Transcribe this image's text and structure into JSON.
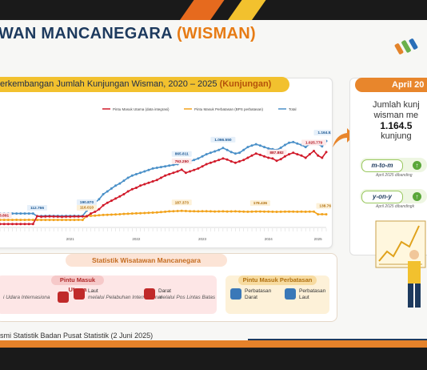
{
  "title": {
    "part1": "WAN MANCANEGARA",
    "part2": "(WISMAN)"
  },
  "chart_header": {
    "text": "erkembangan Jumlah Kunjungan Wisman, 2020 – 2025",
    "highlight": "(Kunjungan)"
  },
  "legend": [
    {
      "label": "Pintu Masuk Utama (data integrasi)",
      "color": "#d11a2a"
    },
    {
      "label": "Pintu Masuk Perbatasan (BPS perbatasan)",
      "color": "#f2a31c"
    },
    {
      "label": "Total",
      "color": "#4a90c8"
    }
  ],
  "chart_data": {
    "type": "line",
    "title": "erkembangan Jumlah Kunjungan Wisman, 2020 – 2025 (Kunjungan)",
    "year_labels": [
      "2021",
      "2022",
      "2023",
      "2024",
      "2025"
    ],
    "series": [
      {
        "name": "Pintu Masuk Utama (data integrasi)",
        "color": "#d11a2a",
        "values": [
          3891,
          3891,
          3891,
          3891,
          3891,
          3891,
          3891,
          3891,
          3891,
          112756,
          105000,
          108000,
          110000,
          108000,
          106000,
          104000,
          106000,
          107000,
          109000,
          108000,
          110000,
          111057,
          150000,
          175000,
          210000,
          265000,
          300000,
          330000,
          360000,
          390000,
          420000,
          460000,
          490000,
          510000,
          540000,
          560000,
          580000,
          600000,
          620000,
          650000,
          680000,
          700000,
          720000,
          740000,
          763250,
          720000,
          740000,
          760000,
          780000,
          810000,
          840000,
          860000,
          880000,
          900000,
          920000,
          905000,
          880000,
          860000,
          880000,
          900000,
          930000,
          960000,
          990000,
          970000,
          950000,
          930000,
          920000,
          887882,
          910000,
          950000,
          980000,
          1000000,
          980000,
          960000,
          930000,
          980000,
          1025779,
          960000,
          930000,
          1010000
        ]
      },
      {
        "name": "Pintu Masuk Perbatasan (BPS perbatasan)",
        "color": "#f2a31c",
        "values": [
          60000,
          61000,
          60500,
          61000,
          61500,
          60000,
          61000,
          61500,
          60000,
          60000,
          60500,
          61000,
          60500,
          60000,
          61000,
          60500,
          61000,
          60500,
          61000,
          61500,
          60000,
          116010,
          118000,
          120000,
          125000,
          130000,
          132000,
          135000,
          138000,
          140000,
          145000,
          147000,
          150000,
          152000,
          155000,
          157000,
          160000,
          162000,
          165000,
          170000,
          175000,
          180000,
          183000,
          185000,
          187373,
          185000,
          183000,
          182000,
          180000,
          181000,
          182000,
          180000,
          178000,
          179000,
          180000,
          178000,
          179000,
          180000,
          178000,
          176000,
          175000,
          176000,
          178000,
          178436,
          177000,
          176000,
          175000,
          174000,
          175000,
          176000,
          177000,
          176000,
          175000,
          176000,
          175000,
          176000,
          176000,
          138760,
          140000,
          138760
        ]
      },
      {
        "name": "Total",
        "color": "#4a90c8",
        "values": [
          150000,
          150000,
          150000,
          150000,
          150000,
          150000,
          150000,
          150000,
          150000,
          112766,
          115000,
          116000,
          118000,
          117000,
          116000,
          115000,
          116000,
          117000,
          118000,
          117000,
          118000,
          190870,
          260000,
          300000,
          350000,
          420000,
          460000,
          500000,
          540000,
          570000,
          610000,
          650000,
          680000,
          700000,
          720000,
          740000,
          760000,
          780000,
          790000,
          800000,
          810000,
          820000,
          830000,
          840000,
          865811,
          860000,
          880000,
          900000,
          920000,
          950000,
          980000,
          1000000,
          1020000,
          1040000,
          1066550,
          1040000,
          1010000,
          990000,
          1000000,
          1040000,
          1080000,
          1100000,
          1120000,
          1100000,
          1080000,
          1060000,
          1050000,
          1040000,
          1070000,
          1110000,
          1140000,
          1150000,
          1130000,
          1110000,
          1080000,
          1120000,
          1160000,
          1120000,
          1090000,
          1164539
        ]
      }
    ],
    "data_labels": [
      {
        "text": "3.891",
        "series": 0,
        "index": 1
      },
      {
        "text": "112.756",
        "series": 0,
        "index": 9
      },
      {
        "text": "112.766",
        "series": 2,
        "index": 9
      },
      {
        "text": "111.057",
        "series": 0,
        "index": 21
      },
      {
        "text": "116.010",
        "series": 1,
        "index": 21
      },
      {
        "text": "190.870",
        "series": 2,
        "index": 21
      },
      {
        "text": "763.250",
        "series": 0,
        "index": 44
      },
      {
        "text": "187.373",
        "series": 1,
        "index": 44
      },
      {
        "text": "865.811",
        "series": 2,
        "index": 44
      },
      {
        "text": "1.066.550",
        "series": 2,
        "index": 54
      },
      {
        "text": "887.882",
        "series": 0,
        "index": 67
      },
      {
        "text": "178.436",
        "series": 1,
        "index": 63
      },
      {
        "text": "1.025.779",
        "series": 0,
        "index": 76
      },
      {
        "text": "138.760",
        "series": 1,
        "index": 79
      },
      {
        "text": "1.164.539",
        "series": 2,
        "index": 79
      }
    ],
    "ylim": [
      0,
      1300000
    ],
    "legend_position": "top"
  },
  "stats": {
    "header": "Statistik Wisatawan Mancanegara",
    "utama_header": "Pintu Masuk Utama",
    "perbatasan_header": "Pintu Masuk Perbatasan",
    "items": [
      {
        "line1": "",
        "line2": "i Udara Internasiona",
        "icon_color": "#c02a2a"
      },
      {
        "line1": "Laut",
        "line2": "melalui Pelabuhan Internasional",
        "icon_color": "#c02a2a"
      },
      {
        "line1": "Darat",
        "line2": "melalui Pos Lintas Batas",
        "icon_color": "#c02a2a"
      },
      {
        "line1": "Perbatasan",
        "line2": "Darat",
        "icon_color": "#3a78b8"
      },
      {
        "line1": "Perbatasan",
        "line2": "Laut",
        "icon_color": "#3a78b8"
      }
    ]
  },
  "source": "smi Statistik Badan Pusat Statistik (2 Juni 2025)",
  "right_panel": {
    "header": "April 20",
    "line1": "Jumlah kunj",
    "line2": "wisman me",
    "value": "1.164.5",
    "line4": "kunjung",
    "mtom": "m-to-m",
    "mtom_note": "April 2025 dibanding",
    "yony": "y-on-y",
    "yony_note": "April 2025 dibandingk"
  },
  "colors": {
    "navy": "#1d3a5e",
    "orange": "#e77b14",
    "red": "#d11a2a",
    "amber": "#f2a31c",
    "blue": "#4a90c8"
  }
}
